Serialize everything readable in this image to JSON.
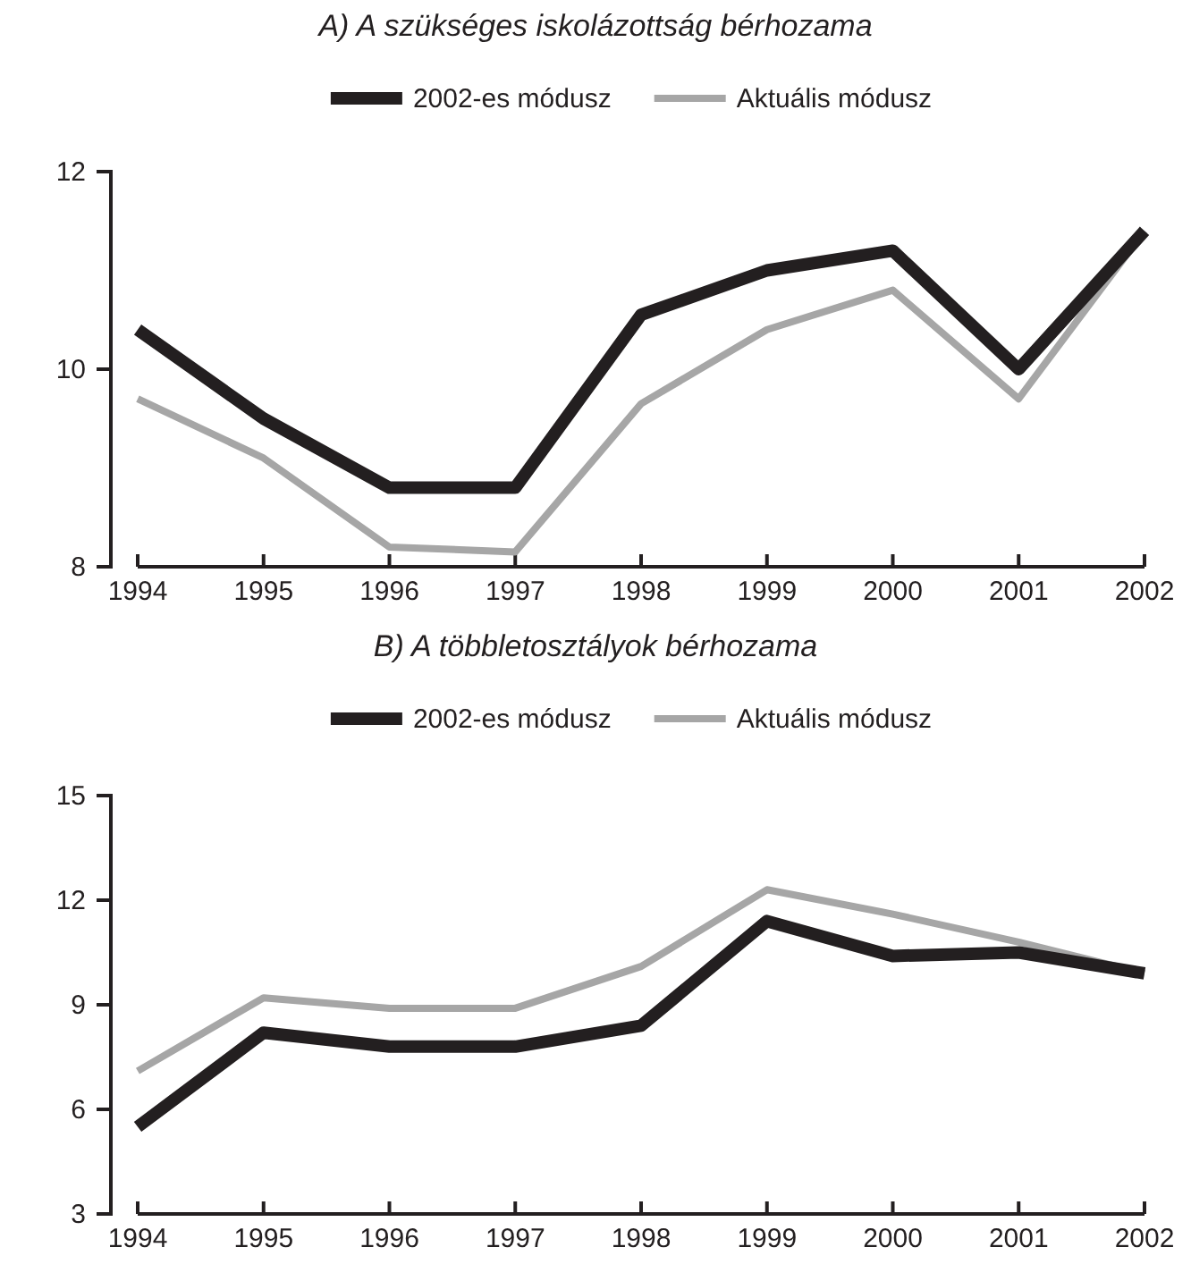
{
  "chart_data": [
    {
      "type": "line",
      "title": "A) A szükséges iskolázottság bérhozama",
      "categories": [
        "1994",
        "1995",
        "1996",
        "1997",
        "1998",
        "1999",
        "2000",
        "2001",
        "2002"
      ],
      "series": [
        {
          "name": "2002-es módusz",
          "color": "#231f20",
          "values": [
            10.4,
            9.5,
            8.8,
            8.8,
            10.55,
            11.0,
            11.2,
            10.0,
            11.4
          ]
        },
        {
          "name": "Aktuális módusz",
          "color": "#a6a6a6",
          "values": [
            9.7,
            9.1,
            8.2,
            8.15,
            9.65,
            10.4,
            10.8,
            9.7,
            11.4
          ]
        }
      ],
      "ylim": [
        8,
        12
      ],
      "yticks": [
        8,
        10,
        12
      ],
      "legend": "top",
      "grid": false,
      "marker": "none",
      "line_style": "solid"
    },
    {
      "type": "line",
      "title": "B) A többletosztályok bérhozama",
      "categories": [
        "1994",
        "1995",
        "1996",
        "1997",
        "1998",
        "1999",
        "2000",
        "2001",
        "2002"
      ],
      "series": [
        {
          "name": "2002-es módusz",
          "color": "#231f20",
          "values": [
            5.5,
            8.2,
            7.8,
            7.8,
            8.4,
            11.4,
            10.4,
            10.5,
            9.9
          ]
        },
        {
          "name": "Aktuális módusz",
          "color": "#a6a6a6",
          "values": [
            7.1,
            9.2,
            8.9,
            8.9,
            10.1,
            12.3,
            11.6,
            10.8,
            9.9
          ]
        }
      ],
      "ylim": [
        3,
        15
      ],
      "yticks": [
        3,
        6,
        9,
        12,
        15
      ],
      "legend": "top",
      "grid": false,
      "marker": "none",
      "line_style": "solid"
    }
  ]
}
